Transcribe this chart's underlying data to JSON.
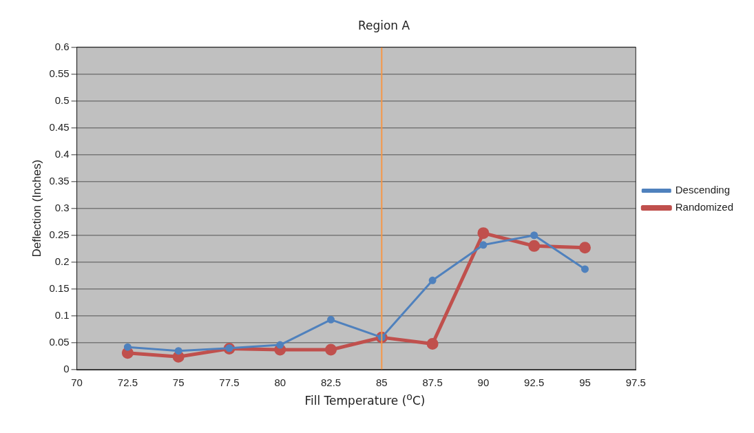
{
  "chart_data": {
    "type": "line",
    "title": "Region A",
    "xlabel": "Fill Temperature ($^{o}$C)",
    "ylabel": "Deflection (Inches)",
    "x": [
      72.5,
      75,
      77.5,
      80,
      82.5,
      85,
      87.5,
      90,
      92.5,
      95
    ],
    "series": [
      {
        "name": "Descending",
        "color": "#4f81bd",
        "values": [
          0.042,
          0.035,
          0.04,
          0.046,
          0.093,
          0.06,
          0.166,
          0.232,
          0.25,
          0.187
        ]
      },
      {
        "name": "Randomized",
        "color": "#c0504d",
        "values": [
          0.031,
          0.024,
          0.039,
          0.037,
          0.037,
          0.06,
          0.048,
          0.254,
          0.23,
          0.227
        ]
      }
    ],
    "xlim": [
      70,
      97.5
    ],
    "xticks": [
      70,
      72.5,
      75,
      77.5,
      80,
      82.5,
      85,
      87.5,
      90,
      92.5,
      95,
      97.5
    ],
    "ylim": [
      0,
      0.6
    ],
    "yticks": [
      0,
      0.05,
      0.1,
      0.15,
      0.2,
      0.25,
      0.3,
      0.35,
      0.4,
      0.45,
      0.5,
      0.55,
      0.6
    ],
    "ref_lines": [
      {
        "axis": "x",
        "value": 85,
        "color": "#f79646"
      }
    ],
    "grid": "y",
    "legend": "right",
    "marker": "circle",
    "line_style": "solid"
  }
}
